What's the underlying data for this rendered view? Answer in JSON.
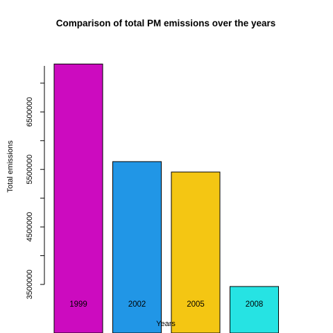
{
  "chart_data": {
    "type": "bar",
    "title": "Comparison of total PM emissions over the years",
    "xlabel": "Years",
    "ylabel": "Total emissions",
    "categories": [
      "1999",
      "2002",
      "2005",
      "2008"
    ],
    "values": [
      7332967,
      5635780,
      5454703,
      3464206
    ],
    "colors": [
      "#cc0bbf",
      "#2196e6",
      "#f4c613",
      "#26e3e3"
    ],
    "yticks": [
      3500000,
      4500000,
      5500000,
      6500000
    ],
    "ylim": [
      3500000,
      7300000
    ],
    "grid": false,
    "legend": "none"
  }
}
